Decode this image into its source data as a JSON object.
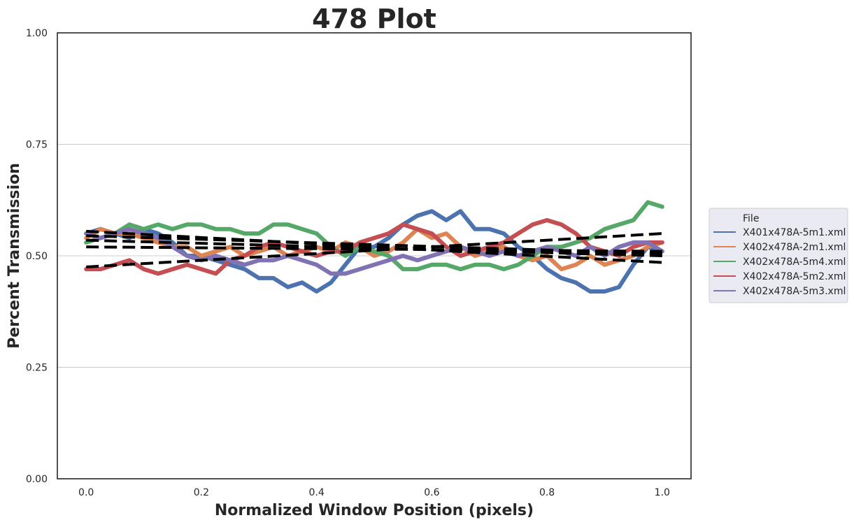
{
  "chart_data": {
    "type": "line",
    "title": "478 Plot",
    "xlabel": "Normalized Window Position (pixels)",
    "ylabel": "Percent Transmission",
    "xlim": [
      -0.05,
      1.05
    ],
    "ylim": [
      0.0,
      1.0
    ],
    "x_ticks": [
      0.0,
      0.2,
      0.4,
      0.6,
      0.8,
      1.0
    ],
    "x_tick_labels": [
      "0.0",
      "0.2",
      "0.4",
      "0.6",
      "0.8",
      "1.0"
    ],
    "y_ticks": [
      0.0,
      0.25,
      0.5,
      0.75,
      1.0
    ],
    "y_tick_labels": [
      "0.00",
      "0.25",
      "0.50",
      "0.75",
      "1.00"
    ],
    "grid": "horizontal",
    "legend_title": "File",
    "legend_position": "outside-right",
    "x": [
      0.0,
      0.025,
      0.05,
      0.075,
      0.1,
      0.125,
      0.15,
      0.175,
      0.2,
      0.225,
      0.25,
      0.275,
      0.3,
      0.325,
      0.35,
      0.375,
      0.4,
      0.425,
      0.45,
      0.475,
      0.5,
      0.525,
      0.55,
      0.575,
      0.6,
      0.625,
      0.65,
      0.675,
      0.7,
      0.725,
      0.75,
      0.775,
      0.8,
      0.825,
      0.85,
      0.875,
      0.9,
      0.925,
      0.95,
      0.975,
      1.0
    ],
    "series": [
      {
        "name": "X401x478A-5m1.xml",
        "color": "#4c72b0",
        "values": [
          0.55,
          0.56,
          0.55,
          0.54,
          0.56,
          0.55,
          0.53,
          0.5,
          0.5,
          0.49,
          0.48,
          0.47,
          0.45,
          0.45,
          0.43,
          0.44,
          0.42,
          0.44,
          0.48,
          0.52,
          0.52,
          0.54,
          0.57,
          0.59,
          0.6,
          0.58,
          0.6,
          0.56,
          0.56,
          0.55,
          0.52,
          0.5,
          0.47,
          0.45,
          0.44,
          0.42,
          0.42,
          0.43,
          0.48,
          0.52,
          0.51
        ]
      },
      {
        "name": "X402x478A-2m1.xml",
        "color": "#dd8452",
        "values": [
          0.54,
          0.56,
          0.55,
          0.55,
          0.54,
          0.53,
          0.52,
          0.52,
          0.5,
          0.51,
          0.52,
          0.5,
          0.51,
          0.52,
          0.5,
          0.51,
          0.52,
          0.51,
          0.53,
          0.52,
          0.5,
          0.51,
          0.53,
          0.56,
          0.54,
          0.55,
          0.52,
          0.5,
          0.51,
          0.52,
          0.5,
          0.49,
          0.5,
          0.47,
          0.48,
          0.5,
          0.48,
          0.49,
          0.5,
          0.52,
          0.53
        ]
      },
      {
        "name": "X402x478A-5m4.xml",
        "color": "#55a868",
        "values": [
          0.53,
          0.54,
          0.55,
          0.57,
          0.56,
          0.57,
          0.56,
          0.57,
          0.57,
          0.56,
          0.56,
          0.55,
          0.55,
          0.57,
          0.57,
          0.56,
          0.55,
          0.52,
          0.5,
          0.52,
          0.51,
          0.5,
          0.47,
          0.47,
          0.48,
          0.48,
          0.47,
          0.48,
          0.48,
          0.47,
          0.48,
          0.5,
          0.52,
          0.52,
          0.53,
          0.54,
          0.56,
          0.57,
          0.58,
          0.62,
          0.61
        ]
      },
      {
        "name": "X402x478A-5m2.xml",
        "color": "#c44e52",
        "values": [
          0.47,
          0.47,
          0.48,
          0.49,
          0.47,
          0.46,
          0.47,
          0.48,
          0.47,
          0.46,
          0.49,
          0.5,
          0.52,
          0.53,
          0.52,
          0.51,
          0.5,
          0.51,
          0.51,
          0.53,
          0.54,
          0.55,
          0.57,
          0.56,
          0.55,
          0.52,
          0.5,
          0.51,
          0.52,
          0.53,
          0.55,
          0.57,
          0.58,
          0.57,
          0.55,
          0.52,
          0.51,
          0.5,
          0.52,
          0.53,
          0.53
        ]
      },
      {
        "name": "X402x478A-5m3.xml",
        "color": "#8172b3",
        "values": [
          0.55,
          0.54,
          0.55,
          0.56,
          0.55,
          0.54,
          0.52,
          0.5,
          0.49,
          0.5,
          0.49,
          0.48,
          0.49,
          0.49,
          0.5,
          0.49,
          0.48,
          0.46,
          0.46,
          0.47,
          0.48,
          0.49,
          0.5,
          0.49,
          0.5,
          0.51,
          0.52,
          0.51,
          0.5,
          0.51,
          0.5,
          0.51,
          0.52,
          0.51,
          0.5,
          0.52,
          0.5,
          0.52,
          0.53,
          0.53,
          0.51
        ]
      }
    ],
    "trend_lines": [
      {
        "color": "#000000",
        "style": "dashed",
        "x": [
          0.0,
          1.0
        ],
        "y": [
          0.545,
          0.505
        ]
      },
      {
        "color": "#000000",
        "style": "dashed",
        "x": [
          0.0,
          1.0
        ],
        "y": [
          0.535,
          0.5
        ]
      },
      {
        "color": "#000000",
        "style": "dashed",
        "x": [
          0.0,
          1.0
        ],
        "y": [
          0.555,
          0.485
        ]
      },
      {
        "color": "#000000",
        "style": "dashed",
        "x": [
          0.0,
          1.0
        ],
        "y": [
          0.475,
          0.55
        ]
      },
      {
        "color": "#000000",
        "style": "dashed",
        "x": [
          0.0,
          1.0
        ],
        "y": [
          0.52,
          0.51
        ]
      }
    ]
  }
}
